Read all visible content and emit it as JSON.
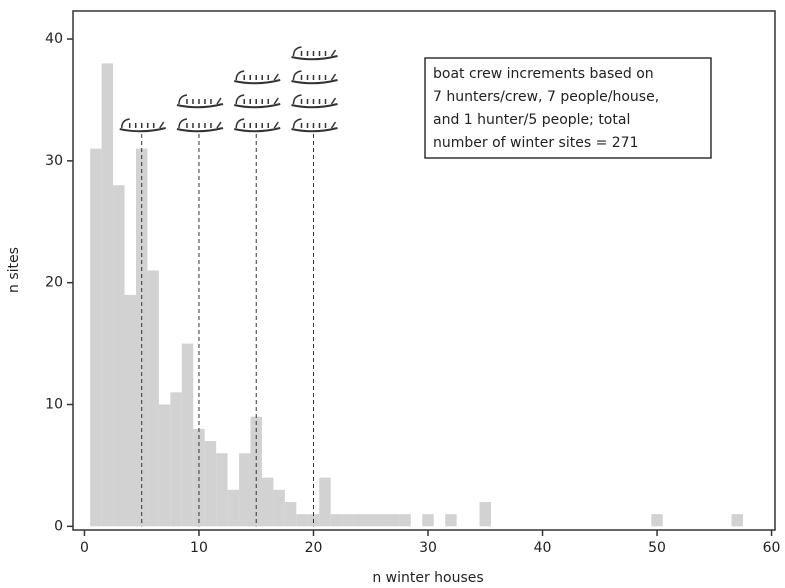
{
  "chart_data": {
    "type": "histogram",
    "xlabel": "n winter houses",
    "ylabel": "n sites",
    "bins": [
      0.5,
      1.5,
      2.5,
      3.5,
      4.5,
      5.5,
      6.5,
      7.5,
      8.5,
      9.5,
      10.5,
      11.5,
      12.5,
      13.5,
      14.5,
      15.5,
      16.5,
      17.5,
      18.5,
      19.5,
      20.5,
      21.5,
      22.5,
      23.5,
      24.5,
      25.5,
      26.5,
      27.5,
      28.5,
      29.5,
      30.5,
      31.5,
      32.5,
      33.5,
      34.5,
      35.5,
      36.5,
      37.5,
      38.5,
      39.5,
      40.5,
      41.5,
      42.5,
      43.5,
      44.5,
      45.5,
      46.5,
      47.5,
      48.5,
      49.5,
      50.5,
      51.5,
      52.5,
      53.5,
      54.5,
      55.5,
      56.5,
      57.5
    ],
    "values": [
      31,
      38,
      28,
      19,
      31,
      21,
      10,
      11,
      15,
      8,
      7,
      6,
      3,
      6,
      9,
      4,
      3,
      2,
      1,
      1,
      4,
      1,
      1,
      1,
      1,
      1,
      1,
      1,
      0,
      1,
      0,
      1,
      0,
      0,
      2,
      0,
      0,
      0,
      0,
      0,
      0,
      0,
      0,
      0,
      0,
      0,
      0,
      0,
      0,
      1,
      0,
      0,
      0,
      0,
      0,
      0,
      1
    ],
    "color": "#d2d2d2",
    "xlim": [
      -1,
      60.3
    ],
    "ylim": [
      -0.3,
      42.3
    ],
    "xticks": [
      0,
      10,
      20,
      30,
      40,
      50,
      60
    ],
    "yticks": [
      0,
      10,
      20,
      30,
      40
    ],
    "reference_lines": [
      5,
      10,
      15,
      20
    ],
    "crews": [
      1,
      2,
      3,
      4
    ],
    "annotation": [
      "boat crew increments based on",
      "7 hunters/crew, 7 people/house,",
      "and 1 hunter/5 people; total",
      "number of winter sites = 271"
    ]
  }
}
